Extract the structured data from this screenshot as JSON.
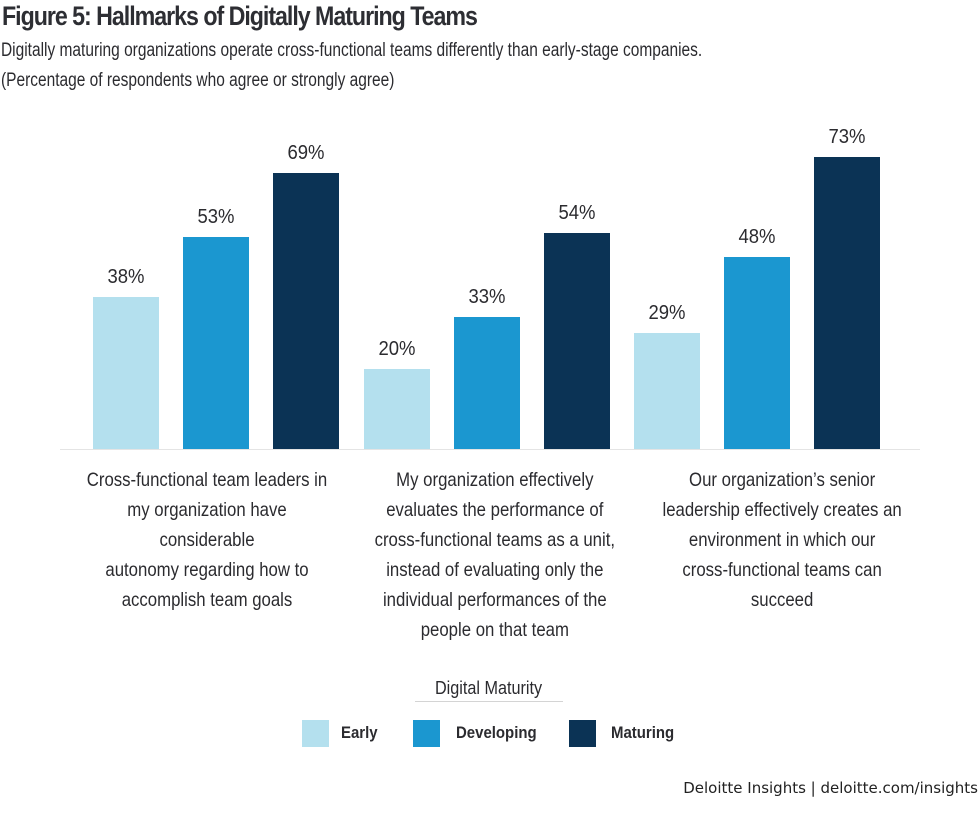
{
  "header": {
    "title": "Figure 5: Hallmarks of Digitally Maturing Teams",
    "subtitle": "Digitally maturing organizations operate cross-functional teams differently than early-stage companies.",
    "note": "(Percentage of respondents who agree or strongly agree)"
  },
  "colors": {
    "early": "#b4e0ee",
    "developing": "#1b97d0",
    "maturing": "#0b3355",
    "baseline": "#e4e4e4"
  },
  "chart_data": {
    "type": "bar",
    "title": "Figure 5: Hallmarks of Digitally Maturing Teams",
    "subtitle": "Digitally maturing organizations operate cross-functional teams differently than early-stage companies.",
    "ylabel": "Percentage of respondents who agree or strongly agree",
    "xlabel": "",
    "ylim": [
      0,
      80
    ],
    "grid": false,
    "categories": [
      "Cross-functional team leaders in my organization have considerable autonomy regarding how to accomplish team goals",
      "My organization effectively evaluates the performance of cross-functional teams as a unit, instead of evaluating only the individual performances of the people on that team",
      "Our organization's senior leadership effectively creates an environment in which our cross-functional teams can succeed"
    ],
    "category_lines": [
      [
        "Cross-functional team leaders in",
        "my organization have considerable",
        "autonomy regarding how to",
        "accomplish team goals"
      ],
      [
        "My organization effectively",
        "evaluates the performance of",
        "cross-functional teams as a unit,",
        "instead of evaluating only the",
        "individual performances of the",
        "people on that team"
      ],
      [
        "Our organization’s senior",
        "leadership effectively creates an",
        "environment in which our",
        "cross-functional teams can",
        "succeed"
      ]
    ],
    "series": [
      {
        "name": "Early",
        "values": [
          38,
          20,
          29
        ],
        "labels": [
          "38%",
          "20%",
          "29%"
        ]
      },
      {
        "name": "Developing",
        "values": [
          53,
          33,
          48
        ],
        "labels": [
          "53%",
          "33%",
          "48%"
        ]
      },
      {
        "name": "Maturing",
        "values": [
          69,
          54,
          73
        ],
        "labels": [
          "69%",
          "54%",
          "73%"
        ]
      }
    ],
    "legend": {
      "title": "Digital Maturity",
      "placement": "bottom-center",
      "entries": [
        "Early",
        "Developing",
        "Maturing"
      ]
    }
  },
  "footer": {
    "source": "Deloitte Insights | deloitte.com/insights"
  }
}
